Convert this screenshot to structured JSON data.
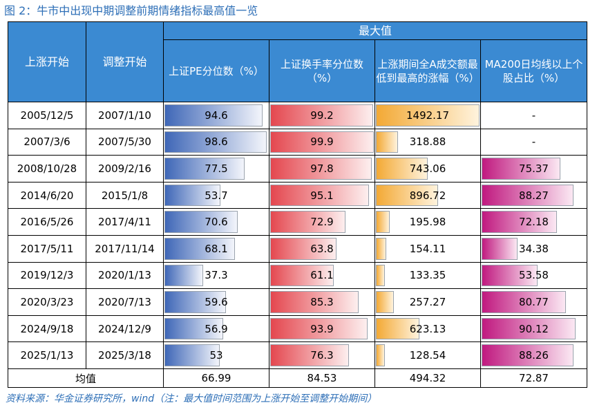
{
  "title": "图 2：牛市中出现中期调整前期情绪指标最高值一览",
  "header": {
    "start_label": "上涨开始",
    "adjust_label": "调整开始",
    "group_label": "最大值",
    "metrics": [
      "上证PE分位数（%）",
      "上证换手率分位数（%）",
      "上涨期间全A成交额最低到最高的涨幅（%）",
      "MA200日均线以上个股占比（%）"
    ]
  },
  "rows": [
    {
      "start": "2005/12/5",
      "adjust": "2007/1/10",
      "vals": [
        "94.6",
        "99.2",
        "1492.17",
        "-"
      ],
      "fills": [
        94.6,
        99.2,
        100,
        0
      ]
    },
    {
      "start": "2007/3/6",
      "adjust": "2007/5/30",
      "vals": [
        "98.6",
        "99.9",
        "318.88",
        "-"
      ],
      "fills": [
        98.6,
        99.9,
        21.4,
        0
      ]
    },
    {
      "start": "2008/10/28",
      "adjust": "2009/2/16",
      "vals": [
        "77.5",
        "97.8",
        "743.06",
        "75.37"
      ],
      "fills": [
        77.5,
        97.8,
        49.8,
        75.37
      ]
    },
    {
      "start": "2014/6/20",
      "adjust": "2015/1/8",
      "vals": [
        "53.7",
        "95.1",
        "896.72",
        "88.27"
      ],
      "fills": [
        53.7,
        95.1,
        60.1,
        88.27
      ]
    },
    {
      "start": "2016/5/26",
      "adjust": "2017/4/11",
      "vals": [
        "70.6",
        "72.9",
        "195.98",
        "72.18"
      ],
      "fills": [
        70.6,
        72.9,
        13.1,
        72.18
      ]
    },
    {
      "start": "2017/5/11",
      "adjust": "2017/11/14",
      "vals": [
        "68.1",
        "63.8",
        "154.11",
        "34.38"
      ],
      "fills": [
        68.1,
        63.8,
        10.3,
        34.38
      ]
    },
    {
      "start": "2019/12/3",
      "adjust": "2020/1/13",
      "vals": [
        "37.3",
        "61.1",
        "133.35",
        "53.58"
      ],
      "fills": [
        37.3,
        61.1,
        8.9,
        53.58
      ]
    },
    {
      "start": "2020/3/23",
      "adjust": "2020/7/13",
      "vals": [
        "59.6",
        "85.3",
        "257.27",
        "80.77"
      ],
      "fills": [
        59.6,
        85.3,
        17.2,
        80.77
      ]
    },
    {
      "start": "2024/9/18",
      "adjust": "2024/12/9",
      "vals": [
        "56.9",
        "93.9",
        "623.13",
        "90.12"
      ],
      "fills": [
        56.9,
        93.9,
        41.8,
        90.12
      ]
    },
    {
      "start": "2025/1/13",
      "adjust": "2025/3/18",
      "vals": [
        "53",
        "76.3",
        "128.54",
        "88.26"
      ],
      "fills": [
        53,
        76.3,
        8.6,
        88.26
      ]
    }
  ],
  "footer": {
    "label": "均值",
    "vals": [
      "66.99",
      "84.53",
      "494.32",
      "72.87"
    ]
  },
  "source": "资料来源：华金证券研究所，wind（注：最大值时间范围为上涨开始至调整开始期间）",
  "colors": {
    "header_bg": "#3B8AD2",
    "pe_bar": "#3F67B7",
    "turnover_bar": "#E4474F",
    "amount_bar": "#F3A935",
    "ma200_bar": "#C0197F",
    "title_text": "#2E6FB7"
  }
}
